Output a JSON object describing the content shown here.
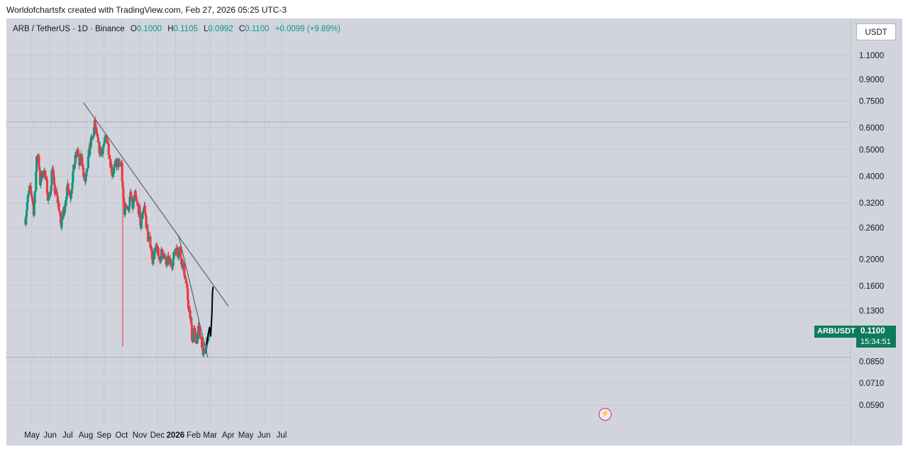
{
  "caption": "Worldofchartsfx created with TradingView.com, Feb 27, 2026 05:25 UTC-3",
  "legend": {
    "symbol": "ARB / TetherUS · 1D · Binance",
    "o_label": "O",
    "o": "0.1000",
    "h_label": "H",
    "h": "0.1105",
    "l_label": "L",
    "l": "0.0992",
    "c_label": "C",
    "c": "0.1100",
    "change": "+0.0099 (+9.89%)"
  },
  "currency_button": "USDT",
  "price_tag": {
    "symbol": "ARBUSDT",
    "price": "0.1100",
    "countdown": "15:34:51"
  },
  "event_icon": "lightning-icon",
  "colors": {
    "up": "#089981",
    "down": "#f23645",
    "background": "#d1d4dc",
    "line": "#5d606b",
    "tag": "#0e7a5c"
  },
  "chart_data": {
    "type": "candlestick",
    "scale": "log",
    "title": "ARB / TetherUS · 1D · Binance",
    "y_ticks": [
      "1.1000",
      "0.9000",
      "0.7500",
      "0.6000",
      "0.5000",
      "0.4000",
      "0.3200",
      "0.2600",
      "0.2000",
      "0.1600",
      "0.1300",
      "0.0850",
      "0.0710",
      "0.0590"
    ],
    "y_tick_values": [
      1.1,
      0.9,
      0.75,
      0.6,
      0.5,
      0.4,
      0.32,
      0.26,
      0.2,
      0.16,
      0.13,
      0.085,
      0.071,
      0.059
    ],
    "x_ticks": [
      "May",
      "Jun",
      "Jul",
      "Aug",
      "Sep",
      "Oct",
      "Nov",
      "Dec",
      "2026",
      "Feb",
      "Mar",
      "Apr",
      "May",
      "Jun",
      "Jul"
    ],
    "x_tick_days": [
      0,
      31,
      61,
      92,
      123,
      153,
      184,
      214,
      245,
      276,
      304,
      335,
      365,
      396,
      426
    ],
    "x_tick_bold": [
      false,
      false,
      false,
      false,
      false,
      false,
      false,
      false,
      true,
      false,
      false,
      false,
      false,
      false,
      false
    ],
    "first_candle_day": -11,
    "last_candle_day": 301,
    "candle_close_path": [
      [
        -11,
        0.28
      ],
      [
        -8,
        0.32
      ],
      [
        -4,
        0.36
      ],
      [
        0,
        0.34
      ],
      [
        3,
        0.3
      ],
      [
        6,
        0.36
      ],
      [
        8,
        0.48
      ],
      [
        11,
        0.46
      ],
      [
        14,
        0.38
      ],
      [
        18,
        0.42
      ],
      [
        21,
        0.4
      ],
      [
        24,
        0.41
      ],
      [
        27,
        0.33
      ],
      [
        31,
        0.34
      ],
      [
        35,
        0.44
      ],
      [
        38,
        0.36
      ],
      [
        42,
        0.34
      ],
      [
        46,
        0.31
      ],
      [
        50,
        0.26
      ],
      [
        53,
        0.31
      ],
      [
        57,
        0.3
      ],
      [
        60,
        0.38
      ],
      [
        63,
        0.36
      ],
      [
        66,
        0.34
      ],
      [
        70,
        0.41
      ],
      [
        74,
        0.46
      ],
      [
        78,
        0.5
      ],
      [
        81,
        0.44
      ],
      [
        85,
        0.48
      ],
      [
        88,
        0.4
      ],
      [
        91,
        0.38
      ],
      [
        94,
        0.41
      ],
      [
        97,
        0.48
      ],
      [
        100,
        0.53
      ],
      [
        104,
        0.55
      ],
      [
        107,
        0.62
      ],
      [
        110,
        0.57
      ],
      [
        113,
        0.52
      ],
      [
        117,
        0.49
      ],
      [
        120,
        0.5
      ],
      [
        124,
        0.53
      ],
      [
        127,
        0.56
      ],
      [
        130,
        0.52
      ],
      [
        134,
        0.45
      ],
      [
        137,
        0.41
      ],
      [
        141,
        0.43
      ],
      [
        145,
        0.45
      ],
      [
        149,
        0.44
      ],
      [
        153,
        0.44
      ],
      [
        155,
        0.35
      ],
      [
        158,
        0.3
      ],
      [
        161,
        0.32
      ],
      [
        164,
        0.3
      ],
      [
        168,
        0.34
      ],
      [
        172,
        0.31
      ],
      [
        176,
        0.34
      ],
      [
        180,
        0.31
      ],
      [
        183,
        0.3
      ],
      [
        186,
        0.26
      ],
      [
        189,
        0.3
      ],
      [
        192,
        0.31
      ],
      [
        195,
        0.27
      ],
      [
        198,
        0.24
      ],
      [
        202,
        0.23
      ],
      [
        206,
        0.2
      ],
      [
        209,
        0.21
      ],
      [
        213,
        0.22
      ],
      [
        217,
        0.2
      ],
      [
        221,
        0.21
      ],
      [
        225,
        0.21
      ],
      [
        229,
        0.19
      ],
      [
        233,
        0.2
      ],
      [
        237,
        0.19
      ],
      [
        241,
        0.2
      ],
      [
        245,
        0.22
      ],
      [
        249,
        0.21
      ],
      [
        252,
        0.22
      ],
      [
        255,
        0.2
      ],
      [
        258,
        0.19
      ],
      [
        262,
        0.17
      ],
      [
        265,
        0.15
      ],
      [
        268,
        0.13
      ],
      [
        271,
        0.12
      ],
      [
        274,
        0.1
      ],
      [
        277,
        0.11
      ],
      [
        280,
        0.1
      ],
      [
        284,
        0.11
      ],
      [
        287,
        0.105
      ],
      [
        290,
        0.1
      ],
      [
        292,
        0.092
      ],
      [
        295,
        0.09
      ],
      [
        297,
        0.097
      ],
      [
        299,
        0.1
      ],
      [
        301,
        0.11
      ]
    ],
    "wick_spike": {
      "day": 155,
      "low": 0.096
    },
    "horizontal_levels": [
      0.63,
      0.088
    ],
    "trendlines": [
      {
        "name": "main-resistance",
        "from": [
          88,
          0.74
        ],
        "to": [
          335,
          0.135
        ]
      },
      {
        "name": "steep-resistance",
        "from": [
          250,
          0.245
        ],
        "to": [
          300,
          0.088
        ]
      }
    ],
    "projection_path": [
      [
        298,
        0.098
      ],
      [
        301,
        0.107
      ],
      [
        303,
        0.113
      ],
      [
        305,
        0.105
      ],
      [
        307,
        0.125
      ],
      [
        308,
        0.15
      ],
      [
        309,
        0.158
      ]
    ]
  }
}
